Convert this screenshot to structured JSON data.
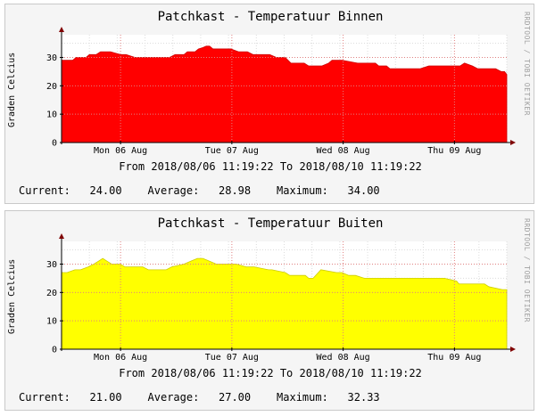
{
  "charts": [
    {
      "title": "Patchkast - Temperatuur Binnen",
      "credit": "RRDTOOL / TOBI OETIKER",
      "ylabel": "Graden Celcius",
      "range_text": "From 2018/08/06 11:19:22 To 2018/08/10 11:19:22",
      "stats": {
        "current_label": "Current:",
        "current": "24.00",
        "average_label": "Average:",
        "average": "28.98",
        "maximum_label": "Maximum:",
        "maximum": "34.00"
      }
    },
    {
      "title": "Patchkast - Temperatuur Buiten",
      "credit": "RRDTOOL / TOBI OETIKER",
      "ylabel": "Graden Celcius",
      "range_text": "From 2018/08/06 11:19:22 To 2018/08/10 11:19:22",
      "stats": {
        "current_label": "Current:",
        "current": "21.00",
        "average_label": "Average:",
        "average": "27.00",
        "maximum_label": "Maximum:",
        "maximum": "32.33"
      }
    }
  ],
  "chart_data": [
    {
      "type": "area",
      "title": "Patchkast - Temperatuur Binnen",
      "ylabel": "Graden Celcius",
      "xlabel": "",
      "x_tick_labels": [
        "Mon 06 Aug",
        "Tue 07 Aug",
        "Wed 08 Aug",
        "Thu 09 Aug"
      ],
      "x_tick_days": [
        0.53,
        1.53,
        2.53,
        3.53
      ],
      "xlim_days": [
        0,
        4
      ],
      "y_ticks": [
        0,
        10,
        20,
        30
      ],
      "ylim": [
        0,
        38
      ],
      "grid": true,
      "fill_color": "#ff0000",
      "line_color": "#cc0000",
      "series": [
        {
          "x_days": [
            0.0,
            0.1,
            0.13,
            0.22,
            0.25,
            0.31,
            0.35,
            0.44,
            0.53,
            0.58,
            0.66,
            0.69,
            0.83,
            0.97,
            1.02,
            1.1,
            1.13,
            1.2,
            1.23,
            1.27,
            1.3,
            1.33,
            1.36,
            1.46,
            1.52,
            1.59,
            1.67,
            1.72,
            1.87,
            1.93,
            2.01,
            2.06,
            2.18,
            2.22,
            2.26,
            2.34,
            2.4,
            2.43,
            2.52,
            2.66,
            2.82,
            2.85,
            2.92,
            2.95,
            3.16,
            3.22,
            3.3,
            3.44,
            3.48,
            3.58,
            3.62,
            3.69,
            3.74,
            3.9,
            3.95,
            3.98,
            4.0
          ],
          "y": [
            29,
            29,
            30,
            30,
            31,
            31,
            32,
            32,
            31,
            31,
            30,
            30,
            30,
            30,
            31,
            31,
            32,
            32,
            33,
            33.5,
            34,
            34,
            33,
            33,
            33,
            32,
            32,
            31,
            31,
            30,
            30,
            28,
            28,
            27,
            27,
            27,
            28,
            29,
            29,
            28,
            28,
            27,
            27,
            26,
            26,
            26,
            27,
            27,
            27,
            27,
            28,
            27,
            26,
            26,
            25,
            25,
            24
          ]
        }
      ]
    },
    {
      "type": "area",
      "title": "Patchkast - Temperatuur Buiten",
      "ylabel": "Graden Celcius",
      "xlabel": "",
      "x_tick_labels": [
        "Mon 06 Aug",
        "Tue 07 Aug",
        "Wed 08 Aug",
        "Thu 09 Aug"
      ],
      "x_tick_days": [
        0.53,
        1.53,
        2.53,
        3.53
      ],
      "xlim_days": [
        0,
        4
      ],
      "y_ticks": [
        0,
        10,
        20,
        30
      ],
      "ylim": [
        0,
        38
      ],
      "grid": true,
      "fill_color": "#ffff00",
      "line_color": "#cccc00",
      "series": [
        {
          "x_days": [
            0.0,
            0.05,
            0.12,
            0.17,
            0.24,
            0.29,
            0.33,
            0.37,
            0.41,
            0.45,
            0.53,
            0.57,
            0.73,
            0.78,
            0.94,
            0.99,
            1.1,
            1.16,
            1.22,
            1.27,
            1.33,
            1.39,
            1.52,
            1.57,
            1.66,
            1.73,
            1.86,
            1.89,
            2.01,
            2.05,
            2.19,
            2.22,
            2.26,
            2.33,
            2.47,
            2.52,
            2.58,
            2.64,
            2.72,
            3.0,
            3.23,
            3.44,
            3.55,
            3.57,
            3.64,
            3.8,
            3.84,
            3.96,
            4.0
          ],
          "y": [
            27,
            27,
            28,
            28,
            29,
            30,
            31,
            32,
            31,
            30,
            30,
            29,
            29,
            28,
            28,
            29,
            30,
            31,
            32,
            32,
            31,
            30,
            30,
            30,
            29,
            29,
            28,
            28,
            27,
            26,
            26,
            25,
            25,
            28,
            27,
            27,
            26,
            26,
            25,
            25,
            25,
            25,
            24,
            23,
            23,
            23,
            22,
            21,
            21
          ]
        }
      ]
    }
  ]
}
